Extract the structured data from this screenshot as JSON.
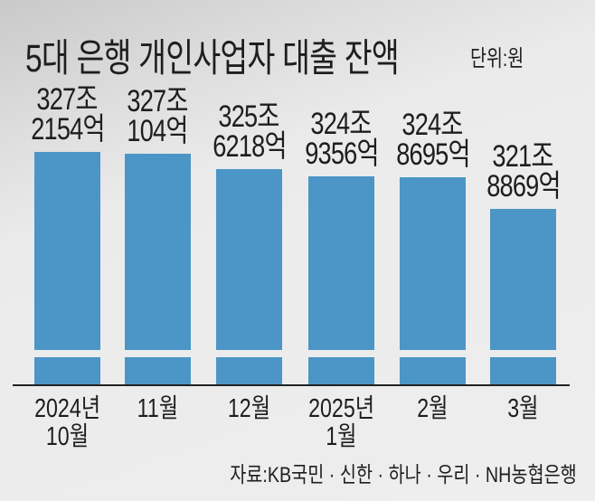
{
  "chart_data": {
    "type": "bar",
    "title": "5대 은행 개인사업자 대출 잔액",
    "unit": "단위:원",
    "categories": [
      [
        "2024년",
        "10월"
      ],
      [
        "11월"
      ],
      [
        "12월"
      ],
      [
        "2025년",
        "1월"
      ],
      [
        "2월"
      ],
      [
        "3월"
      ]
    ],
    "values_jo": [
      327.2154,
      327.0104,
      325.6218,
      324.9356,
      324.8695,
      321.8869
    ],
    "data_labels": [
      [
        "327조",
        "2154억"
      ],
      [
        "327조",
        "104억"
      ],
      [
        "325조",
        "6218억"
      ],
      [
        "324조",
        "9356억"
      ],
      [
        "324조",
        "8695억"
      ],
      [
        "321조",
        "8869억"
      ]
    ],
    "axis_break": true,
    "grid": false,
    "bar_color": "#4b96c6",
    "source": "자료:KB국민 · 신한 · 하나 · 우리 · NH농협은행"
  }
}
